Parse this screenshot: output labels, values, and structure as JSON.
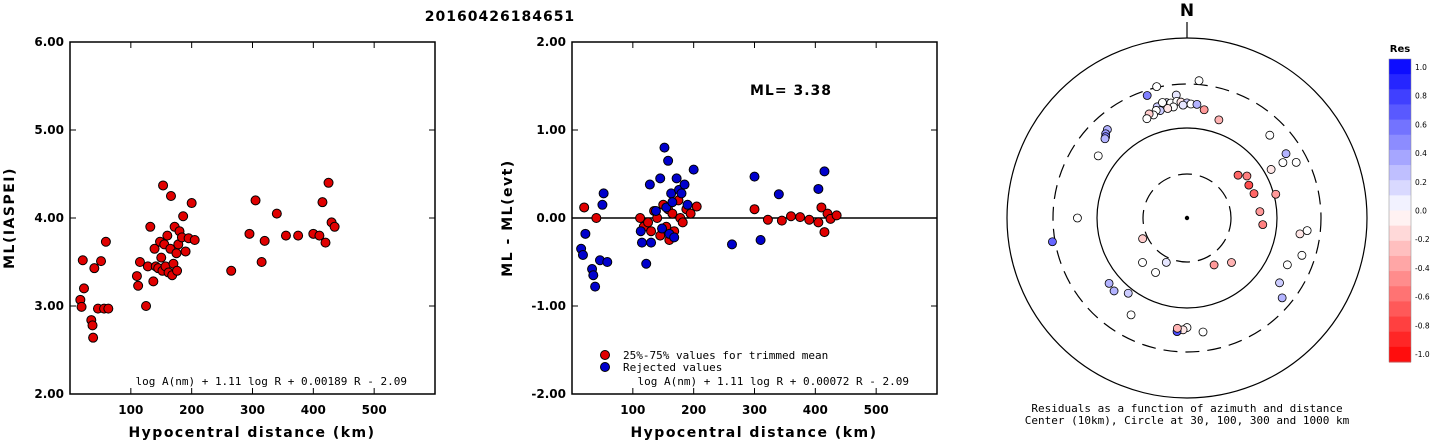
{
  "page_title": "20160426184651",
  "chart_data": [
    {
      "type": "scatter",
      "xlabel": "Hypocentral distance (km)",
      "ylabel": "ML(IASPEI)",
      "xlim": [
        0,
        600
      ],
      "ylim": [
        2,
        6
      ],
      "xticks": [
        "100",
        "200",
        "300",
        "400",
        "500"
      ],
      "yticks": [
        "2.00",
        "3.00",
        "4.00",
        "5.00",
        "6.00"
      ],
      "formula": "log A(nm) + 1.11 log R + 0.00189 R - 2.09",
      "marker_color": "#e00000",
      "x": [
        17,
        19,
        21,
        23,
        35,
        37,
        38,
        40,
        46,
        51,
        56,
        59,
        63,
        110,
        112,
        115,
        125,
        128,
        132,
        137,
        139,
        141,
        145,
        148,
        150,
        152,
        153,
        155,
        157,
        160,
        162,
        165,
        166,
        168,
        170,
        172,
        175,
        176,
        178,
        180,
        184,
        186,
        190,
        195,
        200,
        205,
        265,
        295,
        305,
        315,
        320,
        340,
        355,
        375,
        400,
        410,
        415,
        420,
        425,
        430,
        435
      ],
      "y": [
        3.07,
        2.99,
        3.52,
        3.2,
        2.84,
        2.78,
        2.64,
        3.43,
        2.97,
        3.51,
        2.97,
        3.73,
        2.97,
        3.34,
        3.23,
        3.5,
        3.0,
        3.45,
        3.9,
        3.28,
        3.65,
        3.45,
        3.43,
        3.73,
        3.55,
        3.4,
        4.37,
        3.7,
        3.45,
        3.8,
        3.38,
        3.65,
        4.25,
        3.35,
        3.48,
        3.9,
        3.6,
        3.4,
        3.7,
        3.85,
        3.78,
        4.02,
        3.62,
        3.77,
        4.17,
        3.75,
        3.4,
        3.82,
        4.2,
        3.5,
        3.74,
        4.05,
        3.8,
        3.8,
        3.82,
        3.8,
        4.18,
        3.72,
        4.4,
        3.95,
        3.9
      ]
    },
    {
      "type": "scatter",
      "xlabel": "Hypocentral distance (km)",
      "ylabel": "ML - ML(evt)",
      "xlim": [
        0,
        600
      ],
      "ylim": [
        -2,
        2
      ],
      "xticks": [
        "100",
        "200",
        "300",
        "400",
        "500"
      ],
      "yticks": [
        "-2.00",
        "-1.00",
        "0.00",
        "1.00",
        "2.00"
      ],
      "annotation": "ML= 3.38",
      "formula": "log A(nm) + 1.11 log R + 0.00072 R - 2.09",
      "reference_line": 0,
      "legend": {
        "placement": "bottom-left",
        "entries": [
          {
            "label": "25%-75% values for trimmed mean",
            "color": "#e00000"
          },
          {
            "label": "Rejected values",
            "color": "#0000cc"
          }
        ]
      },
      "series": [
        {
          "name": "25%-75% values for trimmed mean",
          "color": "#e00000",
          "x": [
            20,
            40,
            112,
            118,
            125,
            130,
            135,
            140,
            145,
            150,
            155,
            158,
            160,
            165,
            168,
            175,
            178,
            182,
            188,
            195,
            205,
            300,
            322,
            345,
            360,
            375,
            390,
            405,
            410,
            415,
            420,
            425,
            435
          ],
          "y": [
            0.12,
            0.0,
            0.0,
            -0.1,
            -0.05,
            -0.15,
            0.08,
            0.0,
            -0.2,
            0.15,
            -0.1,
            0.1,
            -0.25,
            0.05,
            -0.15,
            0.2,
            0.0,
            -0.05,
            0.1,
            0.05,
            0.13,
            0.1,
            -0.02,
            -0.03,
            0.02,
            0.01,
            -0.02,
            -0.05,
            0.12,
            -0.16,
            0.05,
            -0.01,
            0.03
          ]
        },
        {
          "name": "Rejected values",
          "color": "#0000cc",
          "x": [
            15,
            18,
            22,
            33,
            35,
            38,
            46,
            50,
            52,
            58,
            113,
            115,
            122,
            128,
            130,
            138,
            145,
            148,
            152,
            155,
            158,
            160,
            163,
            165,
            168,
            172,
            176,
            180,
            185,
            190,
            200,
            263,
            300,
            310,
            340,
            405,
            415
          ],
          "y": [
            -0.35,
            -0.42,
            -0.18,
            -0.58,
            -0.65,
            -0.78,
            -0.48,
            0.15,
            0.28,
            -0.5,
            -0.15,
            -0.28,
            -0.52,
            0.38,
            -0.28,
            0.08,
            0.45,
            -0.12,
            0.8,
            0.12,
            0.65,
            -0.18,
            0.28,
            0.18,
            -0.22,
            0.45,
            0.32,
            0.28,
            0.38,
            0.15,
            0.55,
            -0.3,
            0.47,
            -0.25,
            0.27,
            0.33,
            0.53
          ]
        }
      ]
    },
    {
      "type": "polar-scatter",
      "north_label": "N",
      "caption_line1": "Residuals as a function of azimuth and distance",
      "caption_line2": "Center (10km), Circle at 30, 100, 300 and 1000 km",
      "radial_scale": "log",
      "radial_range_km": [
        10,
        1000
      ],
      "circles_km": [
        30,
        100,
        300
      ],
      "colorbar": {
        "title": "Res",
        "range": [
          -1,
          1
        ],
        "tick_labels": [
          "1.0",
          "0.8",
          "0.6",
          "0.4",
          "0.2",
          "0.0",
          "-0.2",
          "-0.4",
          "-0.6",
          "-0.8",
          "-1.0"
        ],
        "positive_color": "#0000ff",
        "negative_color": "#ff0000"
      },
      "points": [
        {
          "az": 347,
          "dist": 315,
          "res": 0.0
        },
        {
          "az": 342,
          "dist": 270,
          "res": 0.5
        },
        {
          "az": 355,
          "dist": 235,
          "res": 0.1
        },
        {
          "az": 350,
          "dist": 200,
          "res": 0.1
        },
        {
          "az": 345,
          "dist": 190,
          "res": 0.2
        },
        {
          "az": 348,
          "dist": 205,
          "res": 0.0
        },
        {
          "az": 352,
          "dist": 195,
          "res": 0.0
        },
        {
          "az": 355,
          "dist": 200,
          "res": 0.0
        },
        {
          "az": 357,
          "dist": 195,
          "res": -0.1
        },
        {
          "az": 0,
          "dist": 190,
          "res": 0.2
        },
        {
          "az": 2,
          "dist": 185,
          "res": 0.0
        },
        {
          "az": 5,
          "dist": 185,
          "res": 0.3
        },
        {
          "az": 358,
          "dist": 180,
          "res": 0.1
        },
        {
          "az": 353,
          "dist": 175,
          "res": 0.0
        },
        {
          "az": 350,
          "dist": 172,
          "res": -0.1
        },
        {
          "az": 346,
          "dist": 170,
          "res": 0.2
        },
        {
          "az": 344,
          "dist": 175,
          "res": 0.0
        },
        {
          "az": 342,
          "dist": 160,
          "res": 0.0
        },
        {
          "az": 340,
          "dist": 170,
          "res": -0.2
        },
        {
          "az": 338,
          "dist": 155,
          "res": 0.0
        },
        {
          "az": 9,
          "dist": 165,
          "res": -0.4
        },
        {
          "az": 318,
          "dist": 210,
          "res": 0.3
        },
        {
          "az": 316,
          "dist": 200,
          "res": 0.4
        },
        {
          "az": 315,
          "dist": 190,
          "res": 0.5
        },
        {
          "az": 314,
          "dist": 185,
          "res": 0.3
        },
        {
          "az": 305,
          "dist": 160,
          "res": 0.0
        },
        {
          "az": 5,
          "dist": 340,
          "res": 0.0
        },
        {
          "az": 45,
          "dist": 200,
          "res": 0.0
        },
        {
          "az": 57,
          "dist": 205,
          "res": 0.3
        },
        {
          "az": 60,
          "dist": 170,
          "res": 0.0
        },
        {
          "az": 63,
          "dist": 230,
          "res": 0.0
        },
        {
          "az": 75,
          "dist": 105,
          "res": -0.4
        },
        {
          "az": 98,
          "dist": 185,
          "res": -0.1
        },
        {
          "az": 96,
          "dist": 220,
          "res": 0.0
        },
        {
          "az": 108,
          "dist": 220,
          "res": 0.0
        },
        {
          "az": 115,
          "dist": 170,
          "res": 0.0
        },
        {
          "az": 125,
          "dist": 180,
          "res": 0.2
        },
        {
          "az": 130,
          "dist": 240,
          "res": 0.3
        },
        {
          "az": 180,
          "dist": 165,
          "res": 0.0
        },
        {
          "az": 182,
          "dist": 175,
          "res": -0.1
        },
        {
          "az": 185,
          "dist": 185,
          "res": 0.7
        },
        {
          "az": 185,
          "dist": 170,
          "res": -0.3
        },
        {
          "az": 172,
          "dist": 190,
          "res": 0.0
        },
        {
          "az": 210,
          "dist": 175,
          "res": 0.0
        },
        {
          "az": 218,
          "dist": 115,
          "res": 0.2
        },
        {
          "az": 225,
          "dist": 140,
          "res": 0.3
        },
        {
          "az": 230,
          "dist": 135,
          "res": 0.3
        },
        {
          "az": 260,
          "dist": 330,
          "res": 0.6
        },
        {
          "az": 270,
          "dist": 165,
          "res": 0.0
        },
        {
          "az": 135,
          "dist": 50,
          "res": -0.3
        },
        {
          "az": 150,
          "dist": 40,
          "res": -0.4
        },
        {
          "az": 205,
          "dist": 35,
          "res": 0.1
        },
        {
          "az": 210,
          "dist": 50,
          "res": 0.0
        },
        {
          "az": 245,
          "dist": 35,
          "res": -0.2
        },
        {
          "az": 225,
          "dist": 50,
          "res": 0.0
        },
        {
          "az": 50,
          "dist": 55,
          "res": -0.6
        },
        {
          "az": 62,
          "dist": 60,
          "res": -0.7
        },
        {
          "az": 70,
          "dist": 62,
          "res": -0.6
        },
        {
          "az": 55,
          "dist": 65,
          "res": -0.5
        },
        {
          "az": 18,
          "dist": 140,
          "res": -0.3
        },
        {
          "az": 60,
          "dist": 120,
          "res": -0.1
        },
        {
          "az": 85,
          "dist": 65,
          "res": -0.4
        },
        {
          "az": 95,
          "dist": 70,
          "res": -0.5
        }
      ]
    }
  ]
}
